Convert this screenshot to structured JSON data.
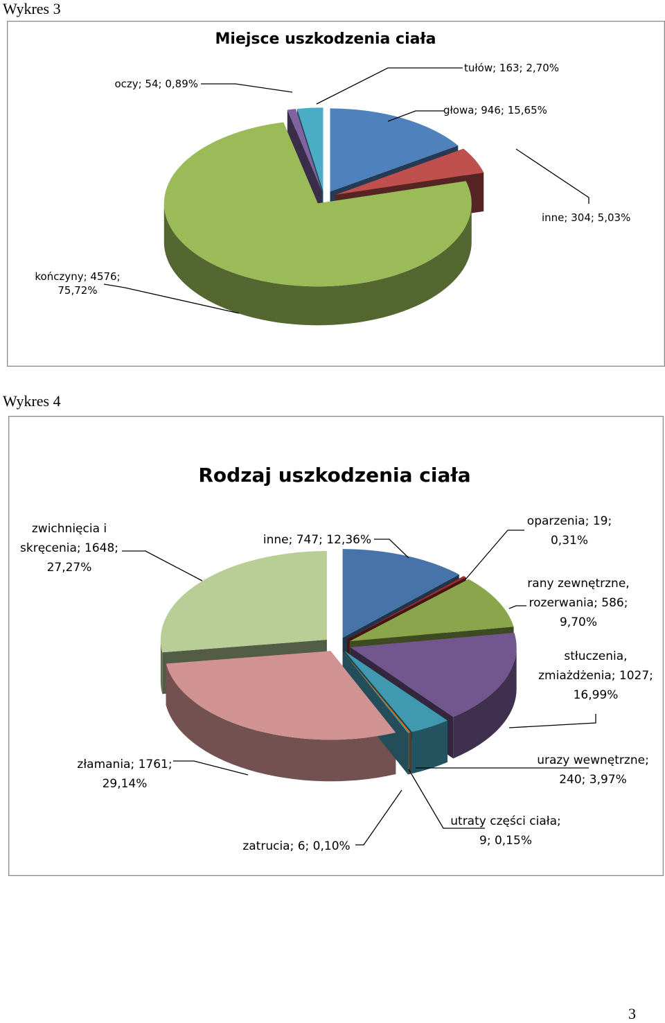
{
  "page": {
    "caption1": "Wykres 3",
    "caption2": "Wykres 4",
    "page_number": "3"
  },
  "chart_data": [
    {
      "type": "pie",
      "style": "3d-exploded",
      "title": "Miejsce uszkodzenia ciała",
      "slices": [
        {
          "label": "głowa",
          "value": 946,
          "percent": "15,65%",
          "text": "głowa; 946; 15,65%",
          "color": "#4f81bd"
        },
        {
          "label": "inne",
          "value": 304,
          "percent": "5,03%",
          "text": "inne; 304; 5,03%",
          "color": "#c0504d"
        },
        {
          "label": "kończyny",
          "value": 4576,
          "percent": "75,72%",
          "text": [
            "kończyny; 4576;",
            "75,72%"
          ],
          "color": "#9bbb59"
        },
        {
          "label": "oczy",
          "value": 54,
          "percent": "0,89%",
          "text": "oczy; 54; 0,89%",
          "color": "#8064a2"
        },
        {
          "label": "tułów",
          "value": 163,
          "percent": "2,70%",
          "text": "tułów; 163; 2,70%",
          "color": "#4bacc6"
        }
      ]
    },
    {
      "type": "pie",
      "style": "3d-exploded",
      "title": "Rodzaj uszkodzenia ciała",
      "slices": [
        {
          "label": "inne",
          "value": 747,
          "percent": "12,36%",
          "text": "inne; 747; 12,36%",
          "color": "#4674a8"
        },
        {
          "label": "oparzenia",
          "value": 19,
          "percent": "0,31%",
          "text": [
            "oparzenia; 19;",
            "0,31%"
          ],
          "color": "#9b2e2b"
        },
        {
          "label": "rany zewnętrzne, rozerwania",
          "value": 586,
          "percent": "9,70%",
          "text": [
            "rany zewnętrzne,",
            "rozerwania; 586;",
            "9,70%"
          ],
          "color": "#8aa54b"
        },
        {
          "label": "stłuczenia, zmiażdżenia",
          "value": 1027,
          "percent": "16,99%",
          "text": [
            "stłuczenia,",
            "zmiażdżenia; 1027;",
            "16,99%"
          ],
          "color": "#72578f"
        },
        {
          "label": "urazy wewnętrzne",
          "value": 240,
          "percent": "3,97%",
          "text": [
            "urazy wewnętrzne;",
            "240; 3,97%"
          ],
          "color": "#4099ae"
        },
        {
          "label": "utraty części ciała",
          "value": 9,
          "percent": "0,15%",
          "text": [
            "utraty części ciała;",
            "9; 0,15%"
          ],
          "color": "#e46c0a"
        },
        {
          "label": "zatrucia",
          "value": 6,
          "percent": "0,10%",
          "text": "zatrucia; 6; 0,10%",
          "color": "#4bacc6"
        },
        {
          "label": "złamania",
          "value": 1761,
          "percent": "29,14%",
          "text": [
            "złamania; 1761;",
            "29,14%"
          ],
          "color": "#d19392"
        },
        {
          "label": "zwichnięcia i skręcenia",
          "value": 1648,
          "percent": "27,27%",
          "text": [
            "zwichnięcia i",
            "skręcenia; 1648;",
            "27,27%"
          ],
          "color": "#b9cd96"
        }
      ]
    }
  ]
}
